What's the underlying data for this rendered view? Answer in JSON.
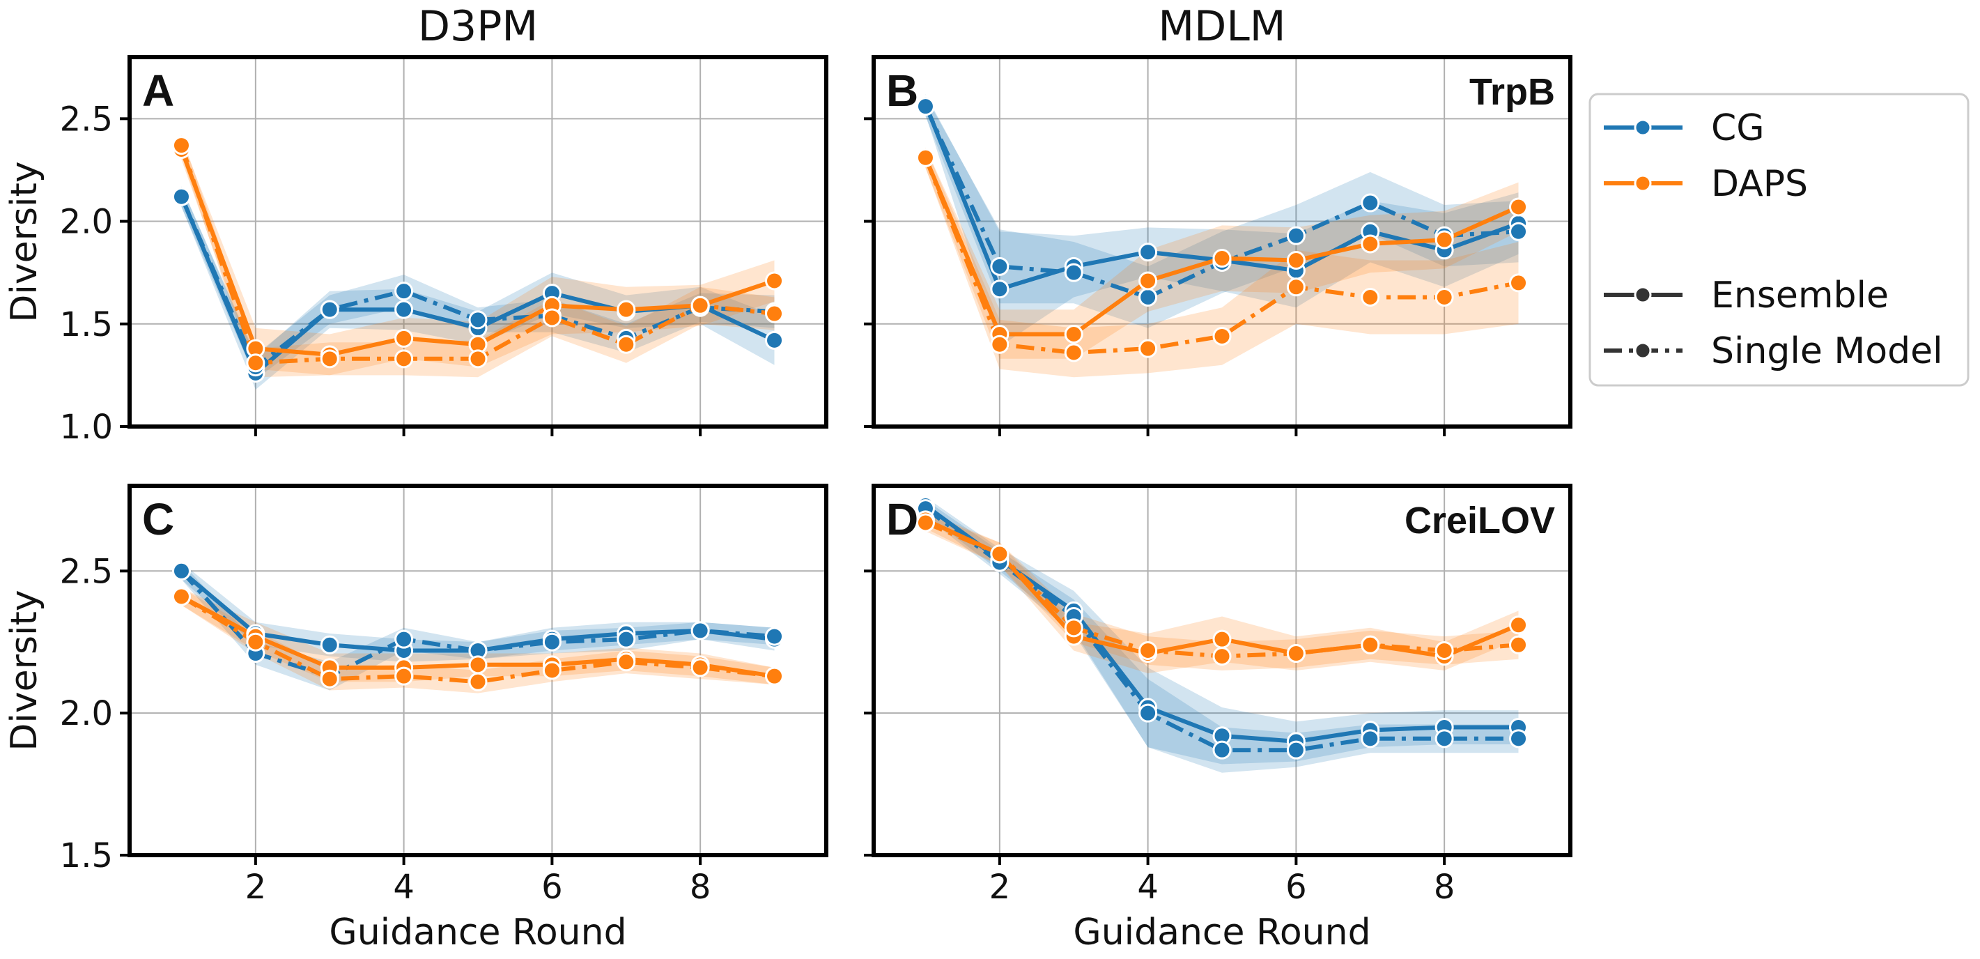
{
  "figure": {
    "column_titles": [
      "D3PM",
      "MDLM"
    ],
    "xlabel": "Guidance Round",
    "ylabel": "Diversity"
  },
  "legend": {
    "methods": [
      {
        "name": "CG",
        "color": "#1f77b4"
      },
      {
        "name": "DAPS",
        "color": "#ff7f0e"
      }
    ],
    "styles": [
      {
        "name": "Ensemble",
        "dash": "solid"
      },
      {
        "name": "Single Model",
        "dash": "dashdot"
      }
    ]
  },
  "chart_data": [
    {
      "type": "line",
      "panel": "A",
      "model": "D3PM",
      "dataset": "",
      "xlabel": "",
      "ylabel": "Diversity",
      "x": [
        1,
        2,
        3,
        4,
        5,
        6,
        7,
        8,
        9
      ],
      "xticks": [
        2,
        4,
        6,
        8
      ],
      "xlim": [
        0.3,
        9.7
      ],
      "ylim": [
        1.0,
        2.8
      ],
      "yticks": [
        "1.0",
        "1.5",
        "2.0",
        "2.5"
      ],
      "grid": true,
      "series": [
        {
          "name": "CG",
          "style": "Ensemble",
          "color": "#1f77b4",
          "values": [
            2.12,
            1.26,
            1.57,
            1.57,
            1.48,
            1.65,
            1.56,
            1.59,
            1.42
          ],
          "band": [
            0.05,
            0.08,
            0.09,
            0.1,
            0.08,
            0.1,
            0.08,
            0.09,
            0.12
          ]
        },
        {
          "name": "CG",
          "style": "Single Model",
          "color": "#1f77b4",
          "values": [
            2.12,
            1.29,
            1.57,
            1.66,
            1.52,
            1.54,
            1.43,
            1.58,
            1.56
          ],
          "band": [
            0.05,
            0.06,
            0.07,
            0.08,
            0.06,
            0.08,
            0.07,
            0.07,
            0.08
          ]
        },
        {
          "name": "DAPS",
          "style": "Ensemble",
          "color": "#ff7f0e",
          "values": [
            2.35,
            1.38,
            1.35,
            1.43,
            1.4,
            1.59,
            1.57,
            1.59,
            1.71
          ],
          "band": [
            0.05,
            0.1,
            0.1,
            0.1,
            0.11,
            0.14,
            0.11,
            0.1,
            0.1
          ]
        },
        {
          "name": "DAPS",
          "style": "Single Model",
          "color": "#ff7f0e",
          "values": [
            2.37,
            1.31,
            1.33,
            1.33,
            1.33,
            1.53,
            1.4,
            1.59,
            1.55
          ],
          "band": [
            0.05,
            0.07,
            0.08,
            0.08,
            0.09,
            0.09,
            0.09,
            0.09,
            0.08
          ]
        }
      ]
    },
    {
      "type": "line",
      "panel": "B",
      "model": "MDLM",
      "dataset": "TrpB",
      "xlabel": "",
      "ylabel": "",
      "x": [
        1,
        2,
        3,
        4,
        5,
        6,
        7,
        8,
        9
      ],
      "xticks": [
        2,
        4,
        6,
        8
      ],
      "xlim": [
        0.3,
        9.7
      ],
      "ylim": [
        1.0,
        2.8
      ],
      "yticks": [],
      "grid": true,
      "series": [
        {
          "name": "CG",
          "style": "Ensemble",
          "color": "#1f77b4",
          "values": [
            2.57,
            1.67,
            1.78,
            1.85,
            1.81,
            1.76,
            1.95,
            1.86,
            1.99
          ],
          "band": [
            0.05,
            0.28,
            0.15,
            0.12,
            0.15,
            0.18,
            0.15,
            0.18,
            0.15
          ]
        },
        {
          "name": "CG",
          "style": "Single Model",
          "color": "#1f77b4",
          "values": [
            2.56,
            1.78,
            1.75,
            1.63,
            1.8,
            1.93,
            2.09,
            1.93,
            1.95
          ],
          "band": [
            0.05,
            0.18,
            0.15,
            0.15,
            0.15,
            0.15,
            0.15,
            0.15,
            0.15
          ]
        },
        {
          "name": "DAPS",
          "style": "Ensemble",
          "color": "#ff7f0e",
          "values": [
            2.31,
            1.45,
            1.45,
            1.71,
            1.82,
            1.81,
            1.89,
            1.91,
            2.07
          ],
          "band": [
            0.05,
            0.12,
            0.12,
            0.15,
            0.16,
            0.16,
            0.14,
            0.14,
            0.12
          ]
        },
        {
          "name": "DAPS",
          "style": "Single Model",
          "color": "#ff7f0e",
          "values": [
            2.31,
            1.4,
            1.36,
            1.38,
            1.44,
            1.68,
            1.63,
            1.63,
            1.7
          ],
          "band": [
            0.05,
            0.12,
            0.12,
            0.12,
            0.14,
            0.18,
            0.18,
            0.18,
            0.2
          ]
        }
      ]
    },
    {
      "type": "line",
      "panel": "C",
      "model": "D3PM",
      "dataset": "",
      "xlabel": "Guidance Round",
      "ylabel": "Diversity",
      "x": [
        1,
        2,
        3,
        4,
        5,
        6,
        7,
        8,
        9
      ],
      "xticks": [
        2,
        4,
        6,
        8
      ],
      "xlim": [
        0.3,
        9.7
      ],
      "ylim": [
        1.5,
        2.8
      ],
      "yticks": [
        "1.5",
        "2.0",
        "2.5"
      ],
      "grid": true,
      "series": [
        {
          "name": "CG",
          "style": "Ensemble",
          "color": "#1f77b4",
          "values": [
            2.5,
            2.28,
            2.24,
            2.22,
            2.22,
            2.26,
            2.28,
            2.29,
            2.26
          ],
          "band": [
            0.03,
            0.04,
            0.04,
            0.04,
            0.03,
            0.04,
            0.04,
            0.03,
            0.04
          ]
        },
        {
          "name": "CG",
          "style": "Single Model",
          "color": "#1f77b4",
          "values": [
            2.5,
            2.21,
            2.13,
            2.26,
            2.22,
            2.25,
            2.26,
            2.29,
            2.27
          ],
          "band": [
            0.03,
            0.04,
            0.05,
            0.04,
            0.03,
            0.04,
            0.04,
            0.03,
            0.03
          ]
        },
        {
          "name": "DAPS",
          "style": "Ensemble",
          "color": "#ff7f0e",
          "values": [
            2.41,
            2.27,
            2.16,
            2.16,
            2.17,
            2.17,
            2.19,
            2.17,
            2.13
          ],
          "band": [
            0.03,
            0.05,
            0.05,
            0.05,
            0.04,
            0.04,
            0.04,
            0.04,
            0.03
          ]
        },
        {
          "name": "DAPS",
          "style": "Single Model",
          "color": "#ff7f0e",
          "values": [
            2.41,
            2.25,
            2.12,
            2.13,
            2.11,
            2.15,
            2.18,
            2.16,
            2.13
          ],
          "band": [
            0.03,
            0.04,
            0.04,
            0.04,
            0.04,
            0.04,
            0.04,
            0.04,
            0.03
          ]
        }
      ]
    },
    {
      "type": "line",
      "panel": "D",
      "model": "MDLM",
      "dataset": "CreiLOV",
      "xlabel": "Guidance Round",
      "ylabel": "",
      "x": [
        1,
        2,
        3,
        4,
        5,
        6,
        7,
        8,
        9
      ],
      "xticks": [
        2,
        4,
        6,
        8
      ],
      "xlim": [
        0.3,
        9.7
      ],
      "ylim": [
        1.5,
        2.8
      ],
      "yticks": [],
      "grid": true,
      "series": [
        {
          "name": "CG",
          "style": "Ensemble",
          "color": "#1f77b4",
          "values": [
            2.73,
            2.54,
            2.36,
            2.02,
            1.92,
            1.9,
            1.94,
            1.95,
            1.95
          ],
          "band": [
            0.03,
            0.04,
            0.07,
            0.14,
            0.1,
            0.07,
            0.06,
            0.06,
            0.06
          ]
        },
        {
          "name": "CG",
          "style": "Single Model",
          "color": "#1f77b4",
          "values": [
            2.72,
            2.53,
            2.34,
            2.0,
            1.87,
            1.87,
            1.91,
            1.91,
            1.91
          ],
          "band": [
            0.03,
            0.04,
            0.06,
            0.12,
            0.08,
            0.06,
            0.05,
            0.05,
            0.05
          ]
        },
        {
          "name": "DAPS",
          "style": "Ensemble",
          "color": "#ff7f0e",
          "values": [
            2.68,
            2.56,
            2.27,
            2.21,
            2.26,
            2.21,
            2.24,
            2.2,
            2.31
          ],
          "band": [
            0.03,
            0.04,
            0.05,
            0.07,
            0.08,
            0.06,
            0.06,
            0.05,
            0.05
          ]
        },
        {
          "name": "DAPS",
          "style": "Single Model",
          "color": "#ff7f0e",
          "values": [
            2.67,
            2.56,
            2.3,
            2.22,
            2.2,
            2.21,
            2.24,
            2.22,
            2.24
          ],
          "band": [
            0.03,
            0.04,
            0.05,
            0.05,
            0.05,
            0.05,
            0.05,
            0.05,
            0.05
          ]
        }
      ]
    }
  ]
}
